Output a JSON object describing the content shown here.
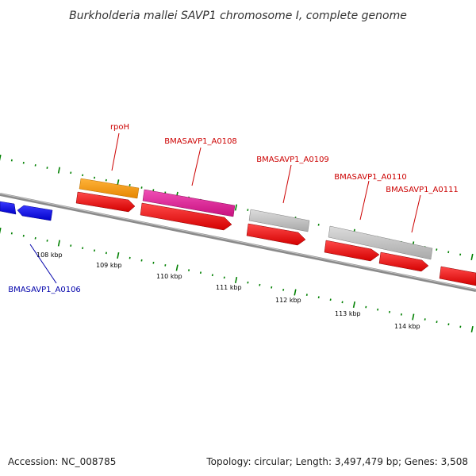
{
  "title": "Burkholderia mallei SAVP1 chromosome I, complete genome",
  "footer": {
    "accession": "Accession: NC_008785",
    "summary": "Topology: circular; Length: 3,497,479 bp; Genes: 3,508"
  },
  "colors": {
    "forward_gene": "#ff0000",
    "reverse_gene": "#0000ff",
    "highlight_orange": "#ff9900",
    "highlight_pink": "#e8189c",
    "grey_gene": "#c8c8c8",
    "backbone": "#808080",
    "ticks": "#008000",
    "forward_label": "#cc0000",
    "reverse_label": "#0000aa"
  },
  "scale_labels": [
    "108 kbp",
    "109 kbp",
    "110 kbp",
    "111 kbp",
    "112 kbp",
    "113 kbp",
    "114 kbp"
  ],
  "gene_labels": [
    {
      "text": "rpoH",
      "strand": "forward"
    },
    {
      "text": "BMASAVP1_A0108",
      "strand": "forward"
    },
    {
      "text": "BMASAVP1_A0109",
      "strand": "forward"
    },
    {
      "text": "BMASAVP1_A0110",
      "strand": "forward"
    },
    {
      "text": "BMASAVP1_A0111",
      "strand": "forward"
    },
    {
      "text": "BMASAVP1_A0106",
      "strand": "reverse"
    }
  ]
}
